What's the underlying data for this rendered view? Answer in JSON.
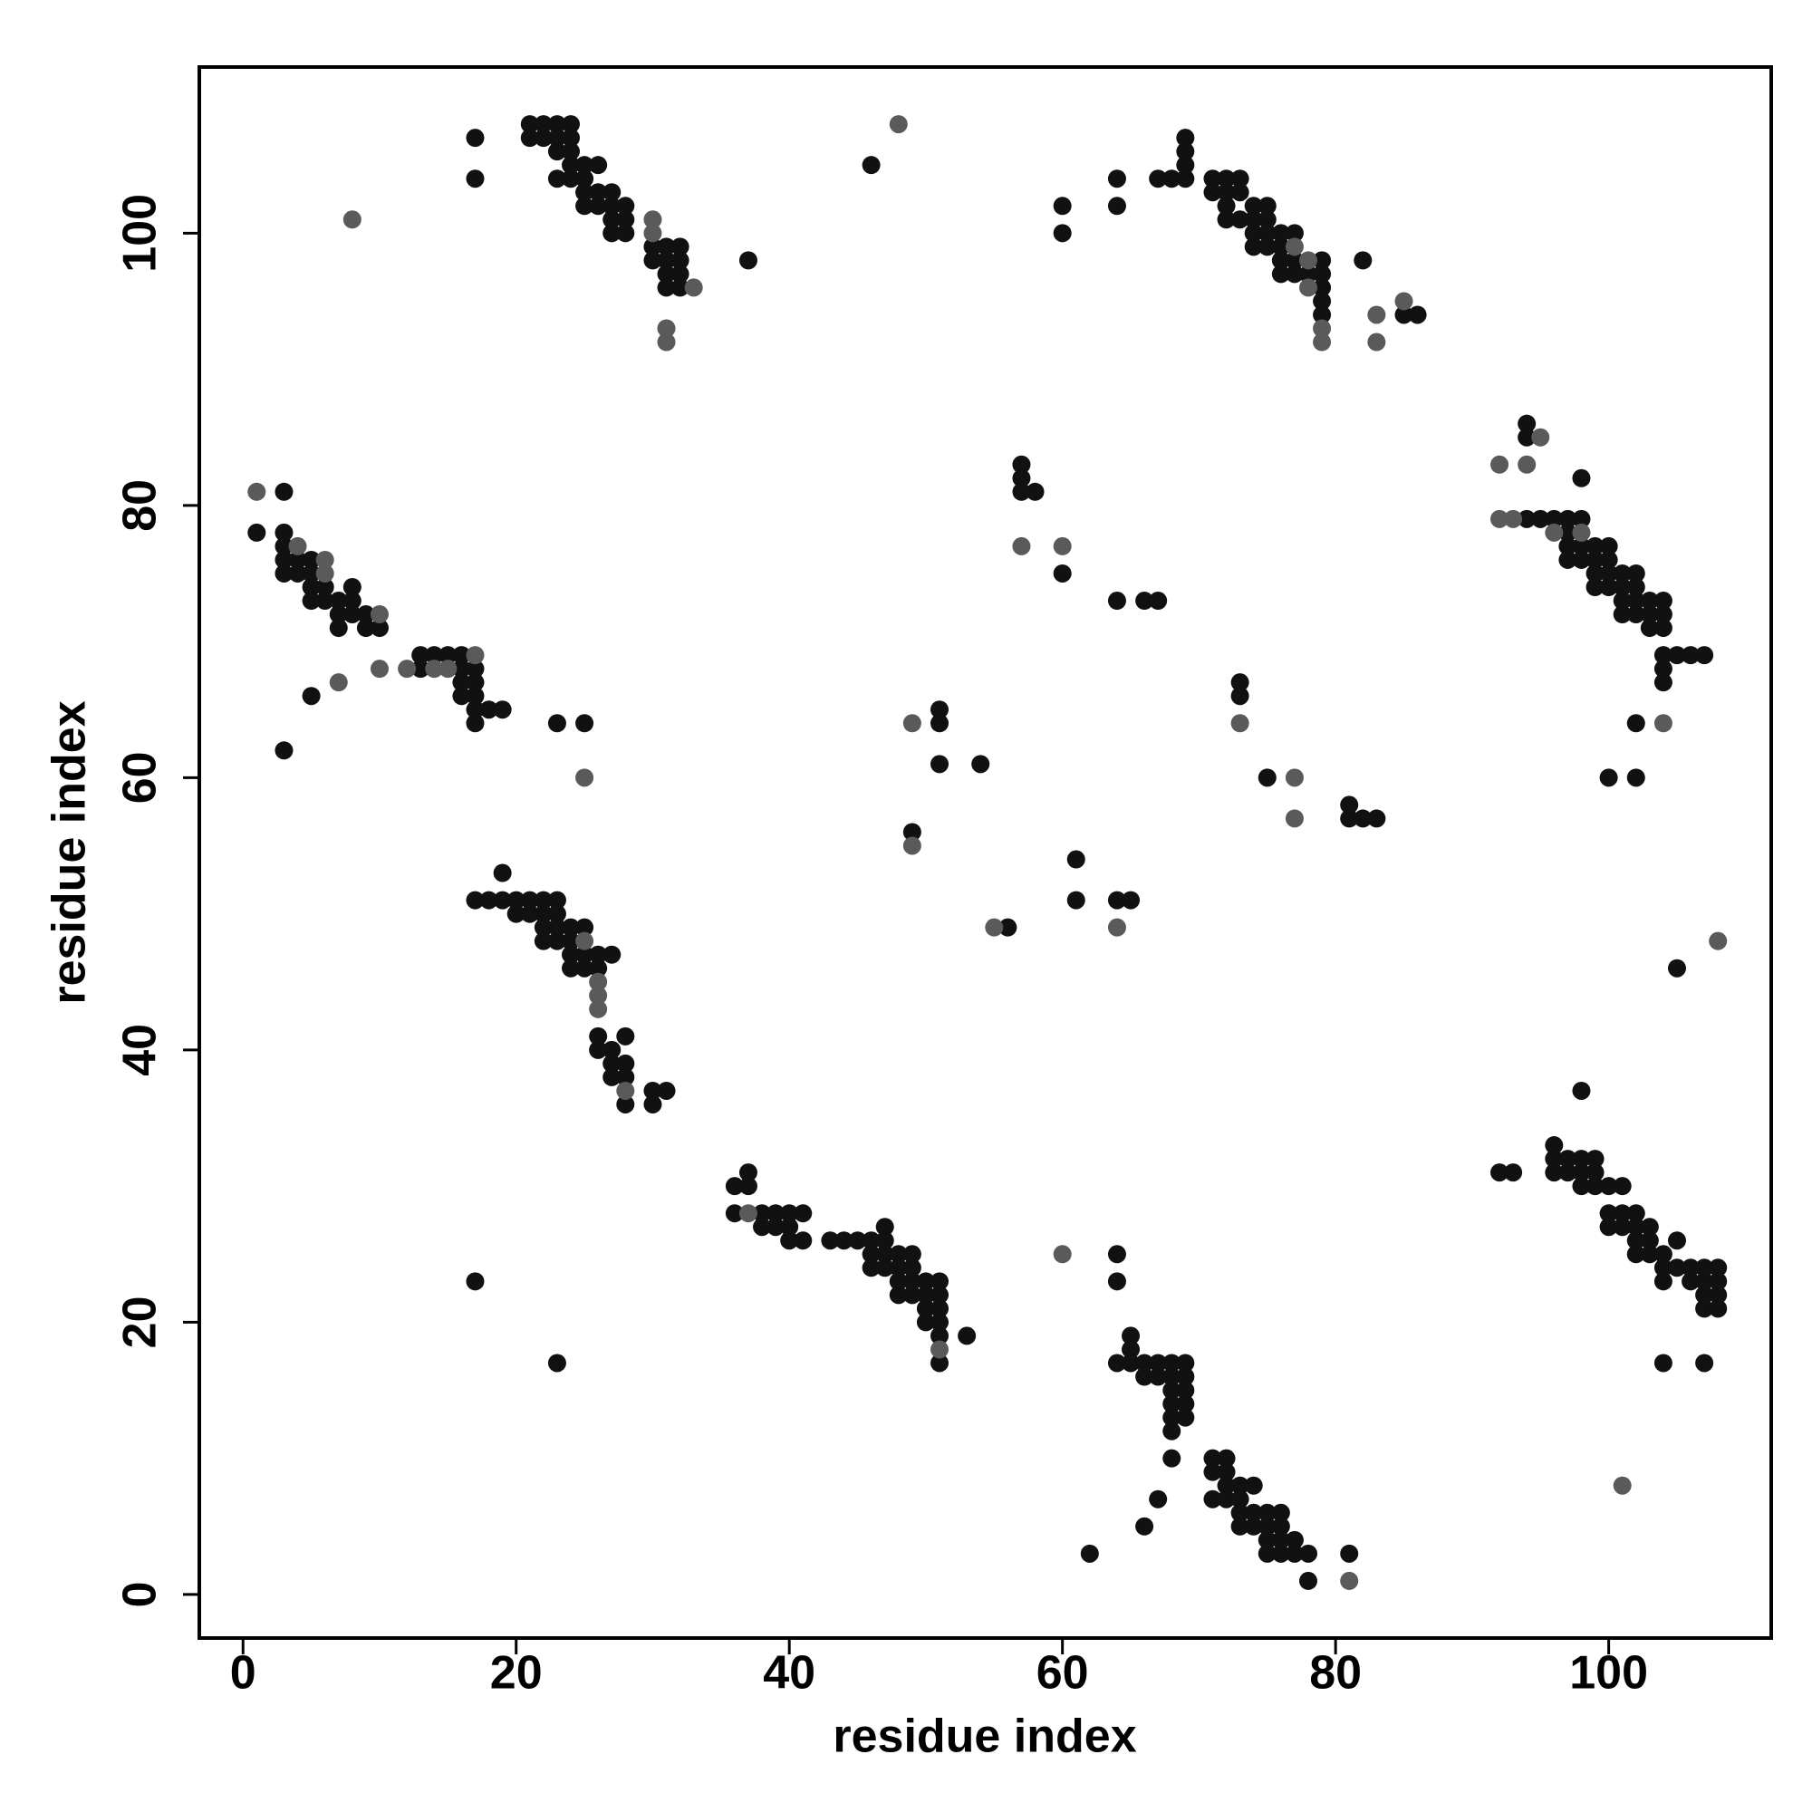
{
  "chart_data": {
    "type": "scatter",
    "x_label": "residue index",
    "y_label": "residue index",
    "xlim": [
      -3.2,
      111.9
    ],
    "ylim": [
      -3.2,
      112.2
    ],
    "xticks": [
      0,
      20,
      40,
      60,
      80,
      100
    ],
    "yticks": [
      0,
      20,
      40,
      60,
      80,
      100
    ],
    "grid": false,
    "series": [
      {
        "color": "#111111",
        "x": [
          17,
          17,
          21,
          22,
          23,
          24,
          21,
          22,
          23,
          24,
          23,
          24,
          23,
          24,
          25,
          26,
          24,
          25,
          25,
          26,
          25,
          26,
          27,
          27,
          28,
          27,
          28,
          27,
          28,
          30,
          31,
          32,
          30,
          31,
          32,
          31,
          32,
          31,
          32,
          37,
          46,
          60,
          60,
          64,
          64,
          67,
          68,
          69,
          69,
          69,
          69,
          71,
          72,
          73,
          71,
          72,
          73,
          72,
          72,
          73,
          74,
          75,
          74,
          75,
          74,
          75,
          76,
          77,
          74,
          75,
          76,
          76,
          77,
          79,
          76,
          77,
          78,
          79,
          79,
          79,
          79,
          82,
          85,
          86,
          3,
          1,
          3,
          3,
          3,
          4,
          5,
          3,
          4,
          5,
          5,
          6,
          5,
          6,
          7,
          8,
          7,
          8,
          9,
          7,
          9,
          10,
          8,
          5,
          3,
          13,
          14,
          15,
          16,
          13,
          16,
          17,
          16,
          17,
          16,
          17,
          17,
          18,
          19,
          17,
          23,
          25,
          94,
          94,
          98,
          94,
          95,
          96,
          97,
          98,
          97,
          97,
          98,
          99,
          100,
          97,
          98,
          99,
          100,
          99,
          100,
          101,
          102,
          99,
          100,
          101,
          102,
          101,
          102,
          103,
          104,
          101,
          102,
          103,
          104,
          103,
          104,
          104,
          105,
          106,
          107,
          104,
          104,
          102,
          100,
          102,
          57,
          57,
          57,
          58,
          60,
          64,
          66,
          67,
          73,
          73,
          75,
          81,
          81,
          82,
          83,
          51,
          51,
          51,
          54,
          49,
          56,
          61,
          61,
          64,
          65,
          105,
          19,
          17,
          18,
          19,
          20,
          21,
          22,
          23,
          20,
          21,
          22,
          23,
          22,
          23,
          24,
          25,
          22,
          23,
          24,
          24,
          25,
          26,
          27,
          24,
          25,
          26,
          26,
          26,
          27,
          28,
          27,
          28,
          27,
          28,
          28,
          30,
          31,
          30,
          36,
          37,
          37,
          36,
          38,
          39,
          40,
          41,
          38,
          39,
          40,
          40,
          41,
          43,
          44,
          45,
          46,
          47,
          47,
          46,
          47,
          48,
          49,
          46,
          47,
          48,
          49,
          48,
          49,
          50,
          51,
          48,
          49,
          50,
          51,
          50,
          51,
          50,
          51,
          51,
          51,
          53,
          17,
          23,
          64,
          64,
          65,
          65,
          64,
          65,
          66,
          67,
          68,
          69,
          66,
          67,
          68,
          69,
          68,
          69,
          68,
          69,
          68,
          69,
          68,
          68,
          71,
          72,
          71,
          72,
          72,
          73,
          74,
          71,
          72,
          73,
          73,
          74,
          75,
          76,
          73,
          74,
          75,
          76,
          75,
          76,
          77,
          75,
          76,
          77,
          78,
          78,
          81,
          67,
          66,
          62,
          98,
          92,
          93,
          96,
          96,
          97,
          98,
          99,
          96,
          97,
          98,
          99,
          98,
          99,
          100,
          101,
          100,
          101,
          102,
          100,
          101,
          102,
          103,
          102,
          103,
          102,
          103,
          104,
          105,
          104,
          105,
          106,
          104,
          106,
          107,
          108,
          107,
          108,
          107,
          108,
          107,
          108,
          104,
          107
        ],
        "y": [
          107,
          104,
          108,
          108,
          108,
          108,
          107,
          107,
          107,
          107,
          106,
          106,
          104,
          105,
          105,
          105,
          104,
          104,
          103,
          103,
          102,
          102,
          103,
          102,
          102,
          101,
          101,
          100,
          100,
          99,
          99,
          99,
          98,
          98,
          98,
          97,
          97,
          96,
          96,
          98,
          105,
          102,
          100,
          104,
          102,
          104,
          104,
          104,
          105,
          106,
          107,
          104,
          104,
          104,
          103,
          103,
          103,
          102,
          101,
          101,
          102,
          102,
          101,
          101,
          100,
          100,
          100,
          100,
          99,
          99,
          99,
          98,
          98,
          98,
          97,
          97,
          97,
          97,
          96,
          95,
          94,
          98,
          94,
          94,
          81,
          78,
          78,
          77,
          76,
          76,
          76,
          75,
          75,
          75,
          74,
          74,
          73,
          73,
          73,
          73,
          72,
          72,
          72,
          71,
          71,
          71,
          74,
          66,
          62,
          69,
          69,
          69,
          69,
          68,
          68,
          68,
          67,
          67,
          66,
          66,
          65,
          65,
          65,
          64,
          64,
          64,
          86,
          85,
          82,
          79,
          79,
          79,
          79,
          79,
          78,
          77,
          77,
          77,
          77,
          76,
          76,
          76,
          76,
          75,
          75,
          75,
          75,
          74,
          74,
          74,
          74,
          73,
          73,
          73,
          73,
          72,
          72,
          72,
          72,
          71,
          71,
          69,
          69,
          69,
          69,
          68,
          67,
          64,
          60,
          60,
          83,
          82,
          81,
          81,
          75,
          73,
          73,
          73,
          67,
          66,
          60,
          58,
          57,
          57,
          57,
          65,
          64,
          61,
          61,
          56,
          49,
          54,
          51,
          51,
          51,
          46,
          53,
          51,
          51,
          51,
          51,
          51,
          51,
          51,
          50,
          50,
          50,
          50,
          49,
          49,
          49,
          49,
          48,
          48,
          48,
          47,
          47,
          47,
          47,
          46,
          46,
          46,
          41,
          40,
          40,
          41,
          39,
          39,
          38,
          38,
          36,
          37,
          37,
          36,
          30,
          30,
          31,
          28,
          28,
          28,
          28,
          28,
          27,
          27,
          27,
          26,
          26,
          26,
          26,
          26,
          26,
          27,
          26,
          25,
          25,
          25,
          25,
          24,
          24,
          24,
          24,
          23,
          23,
          23,
          23,
          22,
          22,
          22,
          22,
          21,
          21,
          20,
          20,
          19,
          17,
          19,
          23,
          17,
          25,
          23,
          19,
          18,
          17,
          17,
          17,
          17,
          17,
          17,
          16,
          16,
          16,
          16,
          15,
          15,
          14,
          14,
          13,
          13,
          12,
          10,
          10,
          10,
          9,
          9,
          8,
          8,
          8,
          7,
          7,
          7,
          6,
          6,
          6,
          6,
          5,
          5,
          5,
          5,
          4,
          4,
          4,
          3,
          3,
          3,
          3,
          1,
          3,
          7,
          5,
          3,
          37,
          31,
          31,
          33,
          32,
          32,
          32,
          32,
          31,
          31,
          31,
          31,
          30,
          30,
          30,
          30,
          28,
          28,
          28,
          27,
          27,
          27,
          27,
          26,
          26,
          25,
          25,
          25,
          26,
          24,
          24,
          24,
          23,
          23,
          24,
          24,
          23,
          23,
          22,
          22,
          21,
          21,
          17,
          17
        ]
      },
      {
        "color": "#5a5a5a",
        "x": [
          8,
          30,
          30,
          33,
          31,
          31,
          48,
          77,
          78,
          78,
          79,
          79,
          83,
          83,
          85,
          1,
          4,
          6,
          6,
          10,
          10,
          7,
          12,
          17,
          14,
          15,
          25,
          92,
          95,
          94,
          96,
          98,
          92,
          93,
          104,
          57,
          60,
          73,
          77,
          77,
          49,
          49,
          55,
          64,
          108,
          25,
          26,
          26,
          26,
          28,
          37,
          51,
          60,
          81,
          101
        ],
        "y": [
          101,
          101,
          100,
          96,
          93,
          92,
          108,
          99,
          98,
          96,
          93,
          92,
          94,
          92,
          95,
          81,
          77,
          76,
          75,
          72,
          68,
          67,
          68,
          69,
          68,
          68,
          60,
          83,
          85,
          83,
          78,
          78,
          79,
          79,
          64,
          77,
          77,
          64,
          60,
          57,
          64,
          55,
          49,
          49,
          48,
          48,
          45,
          44,
          43,
          37,
          28,
          18,
          25,
          1,
          8
        ]
      }
    ]
  }
}
